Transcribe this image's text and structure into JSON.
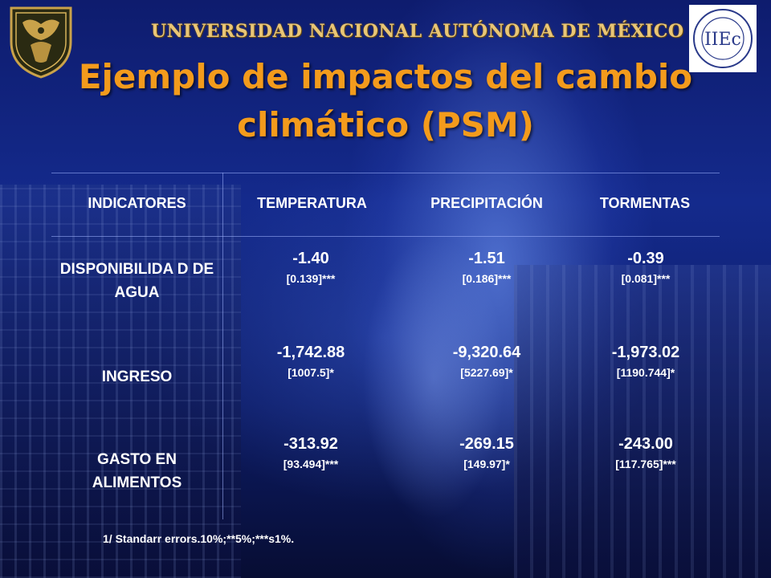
{
  "header": {
    "university_name": "UNIVERSIDAD NACIONAL AUTÓNOMA DE MÉXICO",
    "title": "Ejemplo de impactos del cambio climático (PSM)",
    "left_logo_icon": "unam-shield-icon",
    "right_logo_icon": "iiec-logo-icon",
    "right_logo_letters": "IIEc"
  },
  "table": {
    "headers": [
      "INDICATORES",
      "TEMPERATURA",
      "PRECIPITACIÓN",
      "TORMENTAS"
    ],
    "rows": [
      {
        "label": "DISPONIBILIDA D DE AGUA",
        "cells": [
          {
            "value": "-1.40",
            "se": "[0.139]***"
          },
          {
            "value": "-1.51",
            "se": "[0.186]***"
          },
          {
            "value": "-0.39",
            "se": "[0.081]***"
          }
        ]
      },
      {
        "label": "INGRESO",
        "cells": [
          {
            "value": "-1,742.88",
            "se": "[1007.5]*"
          },
          {
            "value": "-9,320.64",
            "se": "[5227.69]*"
          },
          {
            "value": "-1,973.02",
            "se": "[1190.744]*"
          }
        ]
      },
      {
        "label": "GASTO EN ALIMENTOS",
        "cells": [
          {
            "value": "-313.92",
            "se": "[93.494]***"
          },
          {
            "value": "-269.15",
            "se": "[149.97]*"
          },
          {
            "value": "-243.00",
            "se": "[117.765]***"
          }
        ]
      }
    ]
  },
  "footnote": "1/ Standarr errors.10%;**5%;***s1%.",
  "colors": {
    "title": "#f39b1c",
    "university_name": "#e9c675",
    "background": "#0e1c6e",
    "text": "#ffffff"
  }
}
